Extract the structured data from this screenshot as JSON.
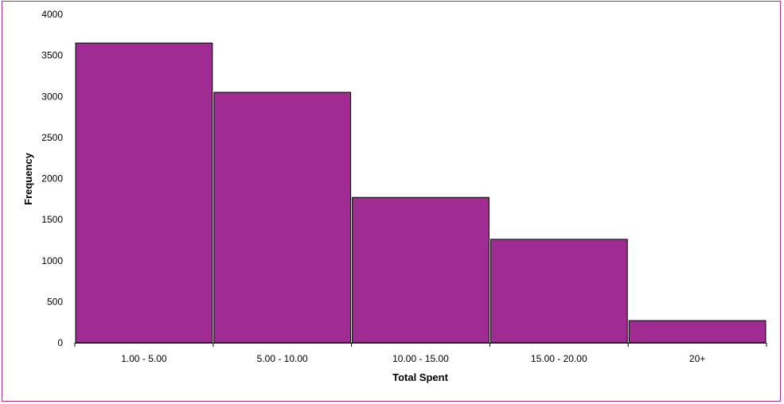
{
  "chart_data": {
    "type": "bar",
    "title": "",
    "xlabel": "Total Spent",
    "ylabel": "Frequency",
    "categories": [
      "1.00 - 5.00",
      "5.00 - 10.00",
      "10.00 - 15.00",
      "15.00 - 20.00",
      "20+"
    ],
    "values": [
      3650,
      3050,
      1770,
      1260,
      270
    ],
    "ylim": [
      0,
      4000
    ],
    "yticks": [
      "0",
      "500",
      "1000",
      "1500",
      "2000",
      "2500",
      "3000",
      "3500",
      "4000"
    ],
    "grid": false,
    "legend": "none",
    "colors": {
      "bar": "#a02b93",
      "bar_edge": "#000000",
      "frame": "#a0308f"
    }
  }
}
